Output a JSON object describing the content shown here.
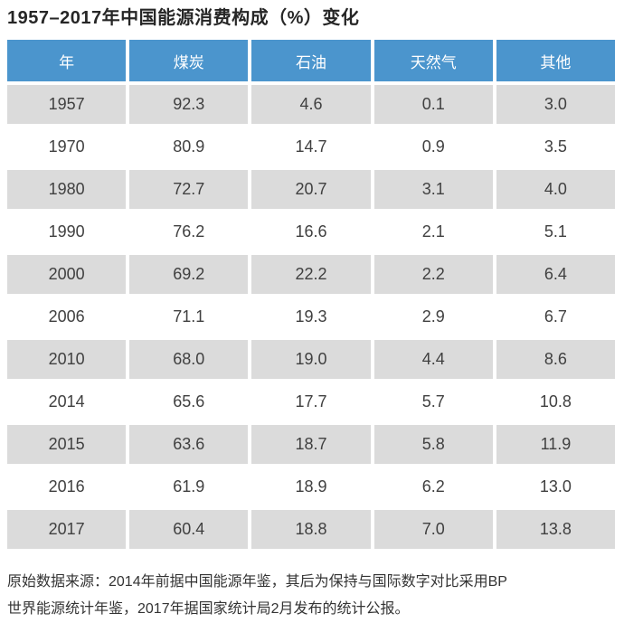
{
  "title": "1957–2017年中国能源消费构成（%）变化",
  "table": {
    "headers": [
      "年",
      "煤炭",
      "石油",
      "天然气",
      "其他"
    ],
    "rows": [
      {
        "year": "1957",
        "coal": "92.3",
        "oil": "4.6",
        "gas": "0.1",
        "other": "3.0"
      },
      {
        "year": "1970",
        "coal": "80.9",
        "oil": "14.7",
        "gas": "0.9",
        "other": "3.5"
      },
      {
        "year": "1980",
        "coal": "72.7",
        "oil": "20.7",
        "gas": "3.1",
        "other": "4.0"
      },
      {
        "year": "1990",
        "coal": "76.2",
        "oil": "16.6",
        "gas": "2.1",
        "other": "5.1"
      },
      {
        "year": "2000",
        "coal": "69.2",
        "oil": "22.2",
        "gas": "2.2",
        "other": "6.4"
      },
      {
        "year": "2006",
        "coal": "71.1",
        "oil": "19.3",
        "gas": "2.9",
        "other": "6.7"
      },
      {
        "year": "2010",
        "coal": "68.0",
        "oil": "19.0",
        "gas": "4.4",
        "other": "8.6"
      },
      {
        "year": "2014",
        "coal": "65.6",
        "oil": "17.7",
        "gas": "5.7",
        "other": "10.8"
      },
      {
        "year": "2015",
        "coal": "63.6",
        "oil": "18.7",
        "gas": "5.8",
        "other": "11.9"
      },
      {
        "year": "2016",
        "coal": "61.9",
        "oil": "18.9",
        "gas": "6.2",
        "other": "13.0"
      },
      {
        "year": "2017",
        "coal": "60.4",
        "oil": "18.8",
        "gas": "7.0",
        "other": "13.8"
      }
    ]
  },
  "source_note": {
    "line1": "原始数据来源：2014年前据中国能源年鉴，其后为保持与国际数字对比采用BP",
    "line2": "世界能源统计年鉴，2017年据国家统计局2月发布的统计公报。"
  },
  "colors": {
    "header_background": "#4B95CD",
    "header_text": "#FFFFFF",
    "shaded_row_background": "#DBDBDB",
    "plain_row_background": "#FFFFFF",
    "title_text": "#262626",
    "cell_text": "#404040",
    "note_text": "#333333"
  },
  "chart_data": {
    "type": "table",
    "title": "1957–2017年中国能源消费构成（%）变化",
    "unit": "%",
    "categories": [
      "1957",
      "1970",
      "1980",
      "1990",
      "2000",
      "2006",
      "2010",
      "2014",
      "2015",
      "2016",
      "2017"
    ],
    "series": [
      {
        "name": "煤炭",
        "values": [
          92.3,
          80.9,
          72.7,
          76.2,
          69.2,
          71.1,
          68.0,
          65.6,
          63.6,
          61.9,
          60.4
        ]
      },
      {
        "name": "石油",
        "values": [
          4.6,
          14.7,
          20.7,
          16.6,
          22.2,
          19.3,
          19.0,
          17.7,
          18.7,
          18.9,
          18.8
        ]
      },
      {
        "name": "天然气",
        "values": [
          0.1,
          0.9,
          3.1,
          2.1,
          2.2,
          2.9,
          4.4,
          5.7,
          5.8,
          6.2,
          7.0
        ]
      },
      {
        "name": "其他",
        "values": [
          3.0,
          3.5,
          4.0,
          5.1,
          6.4,
          6.7,
          8.6,
          10.8,
          11.9,
          13.0,
          13.8
        ]
      }
    ],
    "annotations": [
      "原始数据来源：2014年前据中国能源年鉴，其后为保持与国际数字对比采用BP世界能源统计年鉴，2017年据国家统计局2月发布的统计公报。"
    ]
  }
}
